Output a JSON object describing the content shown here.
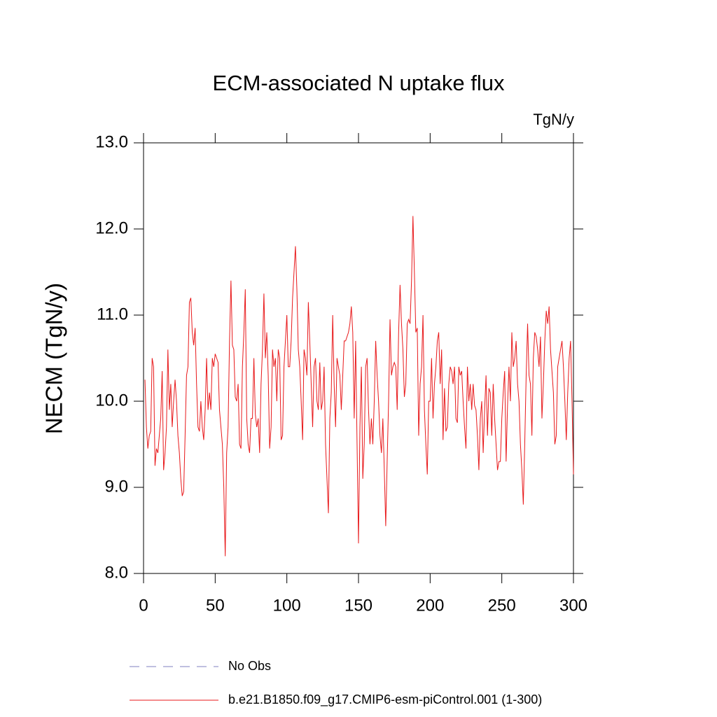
{
  "chart_data": {
    "type": "line",
    "title": "ECM-associated N uptake flux",
    "units": "TgN/y",
    "ylabel": "NECM  (TgN/y)",
    "xlim": [
      0,
      300
    ],
    "xticks": [
      0,
      50,
      100,
      150,
      200,
      250,
      300
    ],
    "ylim": [
      8,
      13
    ],
    "yticks": [
      {
        "value": 8,
        "label": "8.0"
      },
      {
        "value": 9,
        "label": "9.0"
      },
      {
        "value": 10,
        "label": "10.0"
      },
      {
        "value": 11,
        "label": "11.0"
      },
      {
        "value": 12,
        "label": "12.0"
      },
      {
        "value": 13,
        "label": "13.0"
      }
    ],
    "x": [
      1,
      2,
      3,
      4,
      5,
      6,
      7,
      8,
      9,
      10,
      11,
      12,
      13,
      14,
      15,
      16,
      17,
      18,
      19,
      20,
      21,
      22,
      23,
      24,
      25,
      26,
      27,
      28,
      29,
      30,
      31,
      32,
      33,
      34,
      35,
      36,
      37,
      38,
      39,
      40,
      41,
      42,
      43,
      44,
      45,
      46,
      47,
      48,
      49,
      50,
      51,
      52,
      53,
      54,
      55,
      56,
      57,
      58,
      59,
      60,
      61,
      62,
      63,
      64,
      65,
      66,
      67,
      68,
      69,
      70,
      71,
      72,
      73,
      74,
      75,
      76,
      77,
      78,
      79,
      80,
      81,
      82,
      83,
      84,
      85,
      86,
      87,
      88,
      89,
      90,
      91,
      92,
      93,
      94,
      95,
      96,
      97,
      98,
      99,
      100,
      101,
      102,
      103,
      104,
      105,
      106,
      107,
      108,
      109,
      110,
      111,
      112,
      113,
      114,
      115,
      116,
      117,
      118,
      119,
      120,
      121,
      122,
      123,
      124,
      125,
      126,
      127,
      128,
      129,
      130,
      131,
      132,
      133,
      134,
      135,
      136,
      137,
      138,
      139,
      140,
      141,
      142,
      143,
      144,
      145,
      146,
      147,
      148,
      149,
      150,
      151,
      152,
      153,
      154,
      155,
      156,
      157,
      158,
      159,
      160,
      161,
      162,
      163,
      164,
      165,
      166,
      167,
      168,
      169,
      170,
      171,
      172,
      173,
      174,
      175,
      176,
      177,
      178,
      179,
      180,
      181,
      182,
      183,
      184,
      185,
      186,
      187,
      188,
      189,
      190,
      191,
      192,
      193,
      194,
      195,
      196,
      197,
      198,
      199,
      200,
      201,
      202,
      203,
      204,
      205,
      206,
      207,
      208,
      209,
      210,
      211,
      212,
      213,
      214,
      215,
      216,
      217,
      218,
      219,
      220,
      221,
      222,
      223,
      224,
      225,
      226,
      227,
      228,
      229,
      230,
      231,
      232,
      233,
      234,
      235,
      236,
      237,
      238,
      239,
      240,
      241,
      242,
      243,
      244,
      245,
      246,
      247,
      248,
      249,
      250,
      251,
      252,
      253,
      254,
      255,
      256,
      257,
      258,
      259,
      260,
      261,
      262,
      263,
      264,
      265,
      266,
      267,
      268,
      269,
      270,
      271,
      272,
      273,
      274,
      275,
      276,
      277,
      278,
      279,
      280,
      281,
      282,
      283,
      284,
      285,
      286,
      287,
      288,
      289,
      290,
      291,
      292,
      293,
      294,
      295,
      296,
      297,
      298,
      299,
      300
    ],
    "series": [
      {
        "name": "No Obs",
        "color": "#8080c0",
        "dashed": true
      },
      {
        "name": "b.e21.B1850.f09_g17.CMIP6-esm-piControl.001 (1-300)",
        "color": "#e8191b",
        "values": [
          10.25,
          9.7,
          9.45,
          9.6,
          9.65,
          10.5,
          10.4,
          9.25,
          9.45,
          9.4,
          9.6,
          9.8,
          10.35,
          9.2,
          9.4,
          9.7,
          10.6,
          9.9,
          10.2,
          9.7,
          10.0,
          10.25,
          10.0,
          9.6,
          9.4,
          9.1,
          8.9,
          8.95,
          9.6,
          10.3,
          10.4,
          11.15,
          11.2,
          10.8,
          10.65,
          10.85,
          10.2,
          9.7,
          9.65,
          10.0,
          9.7,
          9.55,
          9.9,
          10.5,
          9.9,
          10.1,
          9.9,
          10.5,
          10.4,
          10.55,
          10.5,
          10.45,
          9.9,
          9.7,
          9.5,
          9.0,
          8.2,
          9.4,
          9.7,
          10.7,
          11.4,
          10.65,
          10.6,
          10.05,
          10.0,
          10.2,
          9.5,
          9.45,
          10.4,
          10.8,
          11.3,
          9.8,
          9.5,
          9.4,
          9.8,
          9.8,
          10.5,
          9.85,
          9.7,
          9.8,
          9.4,
          10.2,
          10.6,
          11.25,
          10.5,
          10.8,
          10.3,
          9.45,
          9.7,
          10.6,
          10.4,
          10.5,
          10.0,
          10.6,
          10.5,
          9.55,
          9.6,
          10.4,
          10.7,
          11.0,
          10.4,
          10.4,
          10.7,
          11.2,
          11.5,
          11.8,
          11.3,
          10.6,
          10.4,
          10.0,
          9.55,
          10.6,
          10.5,
          10.3,
          11.15,
          10.7,
          10.2,
          9.7,
          10.4,
          10.5,
          10.0,
          9.9,
          10.45,
          9.9,
          10.0,
          10.4,
          9.5,
          9.1,
          8.7,
          9.8,
          10.1,
          11.0,
          10.2,
          9.7,
          10.5,
          10.4,
          10.3,
          9.9,
          10.3,
          10.7,
          10.7,
          10.75,
          10.8,
          10.9,
          11.1,
          10.8,
          9.8,
          10.7,
          9.5,
          8.35,
          9.7,
          10.4,
          9.1,
          9.5,
          10.4,
          10.5,
          9.9,
          9.5,
          9.8,
          9.5,
          10.0,
          10.7,
          10.3,
          10.0,
          9.6,
          9.4,
          9.8,
          9.2,
          8.55,
          9.3,
          10.0,
          10.95,
          10.3,
          10.4,
          10.45,
          10.4,
          9.9,
          10.8,
          11.35,
          10.9,
          10.6,
          10.05,
          10.2,
          10.9,
          10.95,
          10.9,
          11.4,
          12.15,
          11.5,
          10.8,
          10.85,
          9.6,
          10.2,
          10.4,
          11.0,
          9.9,
          9.5,
          9.15,
          10.0,
          10.0,
          10.5,
          9.8,
          10.2,
          10.4,
          10.7,
          10.8,
          10.2,
          10.6,
          9.55,
          10.15,
          9.65,
          9.7,
          10.2,
          10.4,
          10.35,
          10.2,
          10.4,
          9.8,
          9.75,
          10.4,
          10.3,
          10.35,
          10.0,
          9.7,
          9.45,
          10.4,
          10.0,
          10.2,
          9.9,
          10.2,
          9.95,
          9.9,
          9.6,
          9.2,
          9.8,
          10.0,
          9.4,
          9.9,
          10.3,
          9.6,
          10.15,
          10.1,
          9.6,
          10.2,
          9.8,
          9.5,
          9.2,
          9.3,
          9.3,
          9.8,
          10.1,
          10.35,
          9.3,
          9.95,
          10.4,
          10.0,
          10.8,
          10.4,
          10.5,
          10.7,
          10.2,
          10.0,
          9.5,
          9.2,
          8.8,
          9.5,
          10.3,
          10.9,
          10.3,
          10.2,
          9.6,
          10.5,
          10.8,
          10.75,
          10.6,
          10.4,
          10.75,
          9.8,
          10.2,
          10.7,
          11.05,
          10.9,
          11.1,
          10.6,
          10.35,
          10.1,
          9.5,
          9.6,
          10.4,
          10.5,
          10.6,
          10.7,
          10.4,
          10.0,
          9.55,
          10.1,
          10.5,
          10.7,
          10.0,
          9.15
        ]
      }
    ]
  }
}
